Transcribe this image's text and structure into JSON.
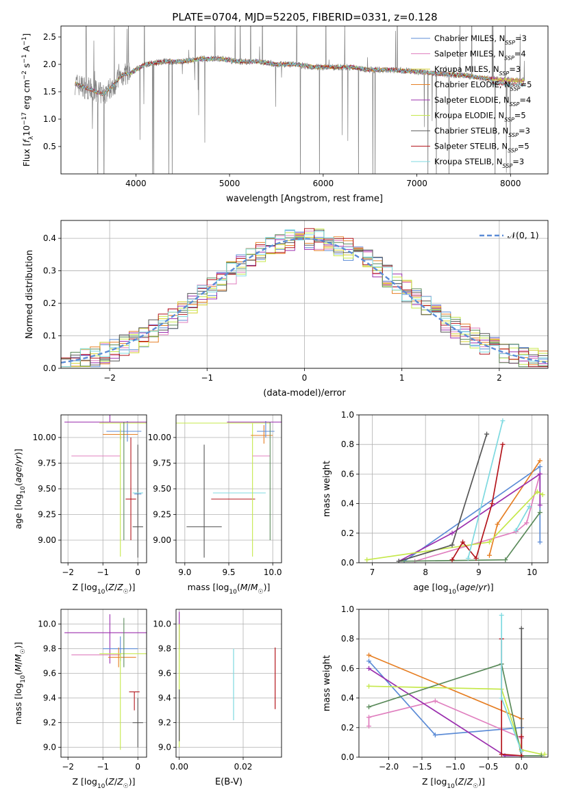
{
  "title": "PLATE=0704, MJD=52205, FIBERID=0331, z=0.128",
  "colors": {
    "Chabrier MILES": "#5b8bd6",
    "Salpeter MILES": "#e07fbf",
    "Kroupa MILES": "#d4d02a",
    "Chabrier ELODIE": "#e67e22",
    "Salpeter ELODIE": "#9b2fae",
    "Kroupa ELODIE": "#c5e84a",
    "Chabrier STELIB": "#555555",
    "Salpeter STELIB": "#b3141b",
    "Kroupa STELIB": "#7dd9e0",
    "data": "#808080",
    "green": "#5a8a5a",
    "normal": "#5b8bd6",
    "grid": "#b0b0b0"
  },
  "chart_data": [
    {
      "id": "spectrum",
      "type": "line",
      "title": "PLATE=0704, MJD=52205, FIBERID=0331, z=0.128",
      "xlabel": "wavelength [Angstrom, rest frame]",
      "ylabel": "Flux [f_λ 10^-17 erg cm^-2 s^-1 A^-1]",
      "xlim": [
        3200,
        8400
      ],
      "ylim": [
        0,
        2.7
      ],
      "xticks": [
        4000,
        5000,
        6000,
        7000,
        8000
      ],
      "yticks": [
        0.5,
        1.0,
        1.5,
        2.0,
        2.5
      ],
      "legend": {
        "position": "top-right",
        "entries": [
          {
            "label": "Chabrier MILES, N",
            "sub": "SSP",
            "suffix": "=3"
          },
          {
            "label": "Salpeter MILES, N",
            "sub": "SSP",
            "suffix": "=4"
          },
          {
            "label": "Kroupa MILES, N",
            "sub": "SSP",
            "suffix": "=3"
          },
          {
            "label": "Chabrier ELODIE, N",
            "sub": "SSP",
            "suffix": "=5"
          },
          {
            "label": "Salpeter ELODIE, N",
            "sub": "SSP",
            "suffix": "=4"
          },
          {
            "label": "Kroupa ELODIE, N",
            "sub": "SSP",
            "suffix": "=5"
          },
          {
            "label": "Chabrier STELIB, N",
            "sub": "SSP",
            "suffix": "=3"
          },
          {
            "label": "Salpeter STELIB, N",
            "sub": "SSP",
            "suffix": "=5"
          },
          {
            "label": "Kroupa STELIB, N",
            "sub": "SSP",
            "suffix": "=3"
          }
        ]
      },
      "continuum": [
        [
          3350,
          1.65
        ],
        [
          3500,
          1.55
        ],
        [
          3650,
          1.45
        ],
        [
          3750,
          1.6
        ],
        [
          3850,
          1.8
        ],
        [
          3950,
          1.85
        ],
        [
          4100,
          2.0
        ],
        [
          4300,
          2.05
        ],
        [
          4500,
          2.05
        ],
        [
          4700,
          2.1
        ],
        [
          4900,
          2.1
        ],
        [
          5100,
          2.05
        ],
        [
          5300,
          2.05
        ],
        [
          5500,
          2.0
        ],
        [
          5700,
          2.0
        ],
        [
          5900,
          1.95
        ],
        [
          6100,
          1.95
        ],
        [
          6300,
          1.95
        ],
        [
          6500,
          1.9
        ],
        [
          6700,
          1.9
        ],
        [
          6900,
          1.88
        ],
        [
          7100,
          1.85
        ],
        [
          7300,
          1.82
        ],
        [
          7500,
          1.8
        ],
        [
          7700,
          1.75
        ],
        [
          7900,
          1.72
        ],
        [
          8150,
          1.7
        ]
      ]
    },
    {
      "id": "residuals",
      "type": "bar",
      "xlabel": "(data-model)/error",
      "ylabel": "Normed distribution",
      "xlim": [
        -2.5,
        2.5
      ],
      "ylim": [
        0,
        0.455
      ],
      "xticks": [
        -2,
        -1,
        0,
        1,
        2
      ],
      "yticks": [
        0.0,
        0.1,
        0.2,
        0.3,
        0.4
      ],
      "legend": {
        "position": "top-right",
        "label": "𝒩(0, 1)"
      },
      "bin_width": 0.1
    },
    {
      "id": "age_vs_Z",
      "type": "scatter",
      "xlabel": "Z [log10(Z/Z☉)]",
      "ylabel": "age [log10(age/yr)]",
      "xlim": [
        -2.2,
        0.25
      ],
      "ylim": [
        8.78,
        10.22
      ],
      "xticks": [
        -2,
        -1,
        0
      ],
      "yticks": [
        9.0,
        9.25,
        9.5,
        9.75,
        10.0
      ],
      "points": [
        {
          "color": "Chabrier MILES",
          "x": 0.0,
          "y": 9.45,
          "xerr": [
            0.1,
            0.1
          ],
          "yerr": [
            0,
            0
          ]
        },
        {
          "color": "Chabrier MILES",
          "x": -0.3,
          "y": 10.06,
          "xerr": [
            0.6,
            0.4
          ],
          "yerr": [
            0.1,
            0.1
          ]
        },
        {
          "color": "Salpeter MILES",
          "x": -1.2,
          "y": 9.82,
          "xerr": [
            0.7,
            0.7
          ],
          "yerr": [
            0,
            0
          ]
        },
        {
          "color": "Chabrier ELODIE",
          "x": -0.5,
          "y": 10.03,
          "xerr": [
            0.5,
            0.5
          ],
          "yerr": [
            0.05,
            0.05
          ]
        },
        {
          "color": "Salpeter ELODIE",
          "x": -0.8,
          "y": 10.15,
          "xerr": [
            1.3,
            1.1
          ],
          "yerr": [
            0.0,
            1.0
          ]
        },
        {
          "color": "Kroupa ELODIE",
          "x": -0.5,
          "y": 10.14,
          "xerr": [
            0.6,
            0.8
          ],
          "yerr": [
            1.3,
            0.0
          ]
        },
        {
          "color": "green",
          "x": -0.4,
          "y": 9.9,
          "xerr": [
            0,
            0
          ],
          "yerr": [
            0.9,
            0.25
          ]
        },
        {
          "color": "Chabrier STELIB",
          "x": 0.0,
          "y": 9.13,
          "xerr": [
            0.15,
            0.15
          ],
          "yerr": [
            0.3,
            0.8
          ]
        },
        {
          "color": "Salpeter STELIB",
          "x": -0.2,
          "y": 9.4,
          "xerr": [
            0.15,
            0.15
          ],
          "yerr": [
            0.4,
            0.6
          ]
        },
        {
          "color": "Kroupa STELIB",
          "x": 0.0,
          "y": 9.46,
          "xerr": [
            0.15,
            0.15
          ],
          "yerr": [
            0,
            0
          ]
        }
      ]
    },
    {
      "id": "age_vs_mass",
      "type": "scatter",
      "xlabel": "mass [log10(M/M☉)]",
      "ylabel": "",
      "xlim": [
        8.9,
        10.1
      ],
      "ylim": [
        8.78,
        10.22
      ],
      "xticks": [
        9.0,
        9.5,
        10.0
      ],
      "yticks": [
        9.0,
        9.25,
        9.5,
        9.75,
        10.0
      ],
      "points": [
        {
          "color": "Chabrier STELIB",
          "x": 9.22,
          "y": 9.13,
          "xerr": [
            0.2,
            0.2
          ],
          "yerr": [
            0.3,
            0.8
          ]
        },
        {
          "color": "Salpeter STELIB",
          "x": 9.55,
          "y": 9.4,
          "xerr": [
            0.25,
            0.25
          ],
          "yerr": [
            0,
            0
          ]
        },
        {
          "color": "Kroupa STELIB",
          "x": 9.62,
          "y": 9.46,
          "xerr": [
            0.3,
            0.3
          ],
          "yerr": [
            0,
            0
          ]
        },
        {
          "color": "Kroupa ELODIE",
          "x": 9.77,
          "y": 10.14,
          "xerr": [
            0.9,
            0.2
          ],
          "yerr": [
            1.3,
            0.0
          ]
        },
        {
          "color": "Salpeter MILES",
          "x": 9.87,
          "y": 9.82,
          "xerr": [
            0.1,
            0.1
          ],
          "yerr": [
            0,
            0
          ]
        },
        {
          "color": "Chabrier ELODIE",
          "x": 9.9,
          "y": 10.02,
          "xerr": [
            0.15,
            0.1
          ],
          "yerr": [
            0.08,
            0.1
          ]
        },
        {
          "color": "Chabrier MILES",
          "x": 9.92,
          "y": 10.06,
          "xerr": [
            0.1,
            0.1
          ],
          "yerr": [
            0.06,
            0.1
          ]
        },
        {
          "color": "Salpeter ELODIE",
          "x": 9.93,
          "y": 10.15,
          "xerr": [
            0.45,
            0.2
          ],
          "yerr": [
            0,
            0
          ]
        },
        {
          "color": "green",
          "x": 9.97,
          "y": 9.9,
          "xerr": [
            0,
            0
          ],
          "yerr": [
            0.9,
            0.25
          ]
        }
      ]
    },
    {
      "id": "weight_vs_age",
      "type": "line",
      "xlabel": "age  [log10(age/yr)]",
      "ylabel": "mass weight",
      "xlim": [
        6.75,
        10.3
      ],
      "ylim": [
        0,
        1.0
      ],
      "xticks": [
        7,
        8,
        9,
        10
      ],
      "yticks": [
        0.0,
        0.2,
        0.4,
        0.6,
        0.8,
        1.0
      ],
      "series": [
        {
          "color": "Chabrier MILES",
          "x": [
            7.6,
            10.15,
            10.15
          ],
          "y": [
            0.01,
            0.65,
            0.14
          ]
        },
        {
          "color": "Salpeter MILES",
          "x": [
            7.8,
            9.7,
            9.9,
            10.15
          ],
          "y": [
            0.01,
            0.21,
            0.27,
            0.6
          ]
        },
        {
          "color": "Chabrier ELODIE",
          "x": [
            9.2,
            9.35,
            10.15
          ],
          "y": [
            0.05,
            0.26,
            0.69
          ]
        },
        {
          "color": "Salpeter ELODIE",
          "x": [
            7.5,
            8.5,
            10.15,
            10.15
          ],
          "y": [
            0.01,
            0.2,
            0.6,
            0.39
          ]
        },
        {
          "color": "Kroupa ELODIE",
          "x": [
            6.9,
            9.2,
            10.1,
            10.2
          ],
          "y": [
            0.02,
            0.14,
            0.48,
            0.46
          ]
        },
        {
          "color": "green",
          "x": [
            7.5,
            9.5,
            10.15
          ],
          "y": [
            0.01,
            0.02,
            0.34
          ]
        },
        {
          "color": "Chabrier STELIB",
          "x": [
            7.5,
            8.5,
            9.15
          ],
          "y": [
            0.01,
            0.12,
            0.87
          ]
        },
        {
          "color": "Salpeter STELIB",
          "x": [
            8.5,
            8.7,
            8.95,
            9.25,
            9.45
          ],
          "y": [
            0.02,
            0.14,
            0.03,
            0.4,
            0.8
          ]
        },
        {
          "color": "Kroupa STELIB",
          "x": [
            8.8,
            9.45
          ],
          "y": [
            0.03,
            0.96
          ]
        },
        {
          "color": "Kroupa STELIB",
          "x": [
            9.7,
            9.95
          ],
          "y": [
            0.22,
            0.38
          ]
        }
      ]
    },
    {
      "id": "mass_vs_Z",
      "type": "scatter",
      "xlabel": "Z [log10(Z/Z☉)]",
      "ylabel": "mass [log10(M/M☉)]",
      "xlim": [
        -2.2,
        0.25
      ],
      "ylim": [
        8.92,
        10.12
      ],
      "xticks": [
        -2,
        -1,
        0
      ],
      "yticks": [
        9.0,
        9.2,
        9.4,
        9.6,
        9.8,
        10.0
      ],
      "points": [
        {
          "color": "Chabrier STELIB",
          "x": 0.0,
          "y": 9.2,
          "xerr": [
            0.15,
            0.15
          ],
          "yerr": [
            0.2,
            0.2
          ]
        },
        {
          "color": "Salpeter STELIB",
          "x": -0.1,
          "y": 9.45,
          "xerr": [
            0.15,
            0.15
          ],
          "yerr": [
            0.15,
            0.0
          ]
        },
        {
          "color": "Salpeter ELODIE",
          "x": -0.8,
          "y": 9.93,
          "xerr": [
            1.3,
            1.1
          ],
          "yerr": [
            0.25,
            0.15
          ]
        },
        {
          "color": "Salpeter MILES",
          "x": -1.2,
          "y": 9.75,
          "xerr": [
            0.7,
            0.7
          ],
          "yerr": [
            0,
            0
          ]
        },
        {
          "color": "Chabrier MILES",
          "x": -0.5,
          "y": 9.8,
          "xerr": [
            0.5,
            0.5
          ],
          "yerr": [
            0.1,
            0.1
          ]
        },
        {
          "color": "Chabrier ELODIE",
          "x": -0.55,
          "y": 9.73,
          "xerr": [
            0.3,
            0.5
          ],
          "yerr": [
            0.08,
            0.08
          ]
        },
        {
          "color": "Kroupa ELODIE",
          "x": -0.5,
          "y": 9.76,
          "xerr": [
            0.6,
            0.8
          ],
          "yerr": [
            0.78,
            0.0
          ]
        },
        {
          "color": "green",
          "x": -0.4,
          "y": 9.85,
          "xerr": [
            0,
            0
          ],
          "yerr": [
            0.2,
            0.2
          ]
        }
      ]
    },
    {
      "id": "mass_vs_EBV",
      "type": "scatter",
      "xlabel": "E(B-V)",
      "ylabel": "",
      "xlim": [
        -0.001,
        0.032
      ],
      "ylim": [
        8.92,
        10.12
      ],
      "xticks": [
        0.0,
        0.02
      ],
      "yticks": [
        9.0,
        9.2,
        9.4,
        9.6,
        9.8,
        10.0
      ],
      "vlines": [
        {
          "color": "Salpeter ELODIE",
          "x": 0.0,
          "y": [
            9.8,
            10.1
          ]
        },
        {
          "color": "Kroupa ELODIE",
          "x": 0.0,
          "y": [
            9.0,
            10.0
          ]
        },
        {
          "color": "Chabrier STELIB",
          "x": 0.0,
          "y": [
            9.05,
            9.47
          ]
        },
        {
          "color": "Kroupa STELIB",
          "x": 0.017,
          "y": [
            9.22,
            9.8
          ]
        },
        {
          "color": "Salpeter STELIB",
          "x": 0.03,
          "y": [
            9.31,
            9.81
          ]
        }
      ]
    },
    {
      "id": "weight_vs_Z",
      "type": "line",
      "xlabel": "Z [log10(Z/Z☉)]",
      "ylabel": "mass weight",
      "xlim": [
        -2.45,
        0.4
      ],
      "ylim": [
        0,
        1.0
      ],
      "xticks": [
        -2.0,
        -1.5,
        -1.0,
        -0.5,
        0.0
      ],
      "yticks": [
        0.0,
        0.2,
        0.4,
        0.6,
        0.8,
        1.0
      ],
      "series": [
        {
          "color": "Chabrier MILES",
          "x": [
            -2.3,
            -1.3,
            0.0,
            0.0
          ],
          "y": [
            0.65,
            0.15,
            0.2,
            0.01
          ]
        },
        {
          "color": "Salpeter MILES",
          "x": [
            -2.3,
            -2.3,
            -1.3,
            0.0
          ],
          "y": [
            0.21,
            0.27,
            0.38,
            0.13
          ]
        },
        {
          "color": "Chabrier ELODIE",
          "x": [
            -2.3,
            0.0,
            0.0
          ],
          "y": [
            0.69,
            0.26,
            0.05
          ]
        },
        {
          "color": "Salpeter ELODIE",
          "x": [
            -2.3,
            -0.25,
            0.0
          ],
          "y": [
            0.6,
            0.01,
            0.01
          ]
        },
        {
          "color": "Kroupa ELODIE",
          "x": [
            -2.3,
            -0.3,
            0.0,
            0.3,
            0.35
          ],
          "y": [
            0.48,
            0.46,
            0.05,
            0.02,
            0.02
          ]
        },
        {
          "color": "green",
          "x": [
            -2.3,
            -0.3,
            0.0,
            0.3
          ],
          "y": [
            0.34,
            0.63,
            0.01,
            0.01
          ]
        },
        {
          "color": "Chabrier STELIB",
          "x": [
            0.0,
            0.0
          ],
          "y": [
            0.87,
            0.0
          ]
        },
        {
          "color": "Salpeter STELIB",
          "x": [
            -0.3,
            -0.3,
            0.0,
            0.0
          ],
          "y": [
            0.8,
            0.02,
            0.01,
            0.14
          ]
        },
        {
          "color": "Kroupa STELIB",
          "x": [
            -0.3,
            -0.3,
            0.0
          ],
          "y": [
            0.96,
            0.4,
            0.04
          ]
        }
      ]
    }
  ]
}
